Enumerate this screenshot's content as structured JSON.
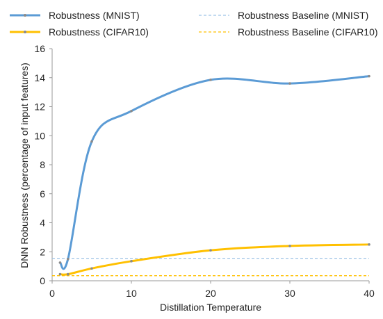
{
  "chart_data": {
    "type": "line",
    "xlabel": "Distillation Temperature",
    "ylabel": "DNN Robustness (percentage of input features)",
    "xlim": [
      0,
      40
    ],
    "ylim": [
      0,
      16
    ],
    "x_ticks": [
      "0",
      "10",
      "20",
      "30",
      "40"
    ],
    "y_ticks": [
      "0",
      "2",
      "4",
      "6",
      "8",
      "10",
      "12",
      "14",
      "16"
    ],
    "grid": false,
    "legend_position": "top",
    "series": [
      {
        "name": "Robustness (MNIST)",
        "color": "#5B9BD5",
        "style": "solid",
        "x": [
          1,
          2,
          5,
          10,
          20,
          30,
          40
        ],
        "y": [
          1.25,
          1.5,
          9.6,
          11.7,
          13.85,
          13.6,
          14.1
        ]
      },
      {
        "name": "Robustness (CIFAR10)",
        "color": "#FFC000",
        "style": "solid",
        "x": [
          1,
          2,
          5,
          10,
          20,
          30,
          40
        ],
        "y": [
          0.45,
          0.45,
          0.85,
          1.35,
          2.1,
          2.4,
          2.5
        ]
      },
      {
        "name": "Robustness Baseline (MNIST)",
        "color": "#9DC3E6",
        "style": "dashed",
        "x": [
          0,
          40
        ],
        "y": [
          1.55,
          1.55
        ]
      },
      {
        "name": "Robustness Baseline (CIFAR10)",
        "color": "#FFC000",
        "style": "dashed",
        "x": [
          0,
          40
        ],
        "y": [
          0.35,
          0.35
        ]
      }
    ]
  }
}
